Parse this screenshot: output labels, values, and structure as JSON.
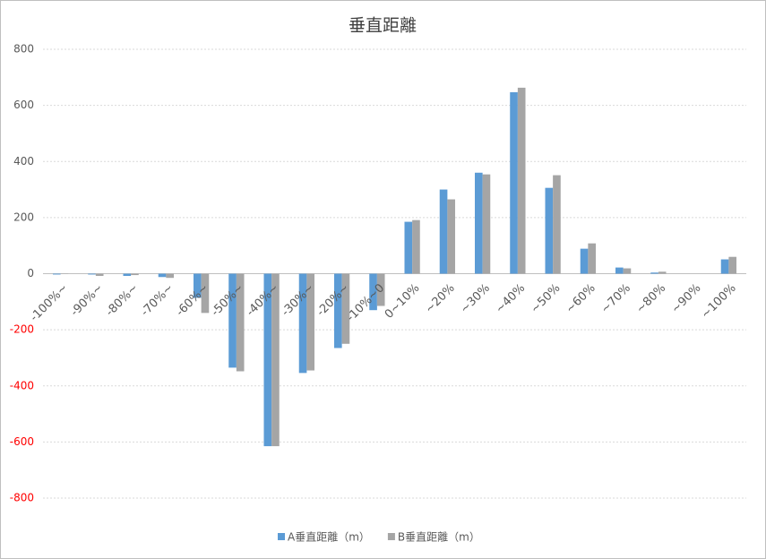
{
  "chart_data": {
    "type": "bar",
    "title": "垂直距離",
    "categories": [
      "-100%~",
      "-90%~",
      "-80%~",
      "-70%~",
      "-60%~",
      "-50%~",
      "-40%~",
      "-30%~",
      "-20%~",
      "-10%~0",
      "0~10%",
      "~20%",
      "~30%",
      "~40%",
      "~50%",
      "~60%",
      "~70%",
      "~80%",
      "~90%",
      "~100%"
    ],
    "series": [
      {
        "name": "A垂直距離（m）",
        "color": "#5b9bd5",
        "values": [
          -3,
          -3,
          -8,
          -12,
          -86,
          -335,
          -615,
          -354,
          -265,
          -130,
          185,
          300,
          360,
          647,
          306,
          89,
          22,
          4,
          0,
          51
        ]
      },
      {
        "name": "B垂直距離（m）",
        "color": "#a5a5a5",
        "values": [
          -1,
          -8,
          -5,
          -15,
          -140,
          -348,
          -615,
          -345,
          -250,
          -115,
          191,
          265,
          354,
          663,
          351,
          108,
          19,
          7,
          0,
          60
        ]
      }
    ],
    "ylim": [
      -800,
      800
    ],
    "yticks": [
      -800,
      -600,
      -400,
      -200,
      0,
      200,
      400,
      600,
      800
    ],
    "negative_tick_color": "#ff0000",
    "grid": true,
    "legend": "bottom"
  }
}
